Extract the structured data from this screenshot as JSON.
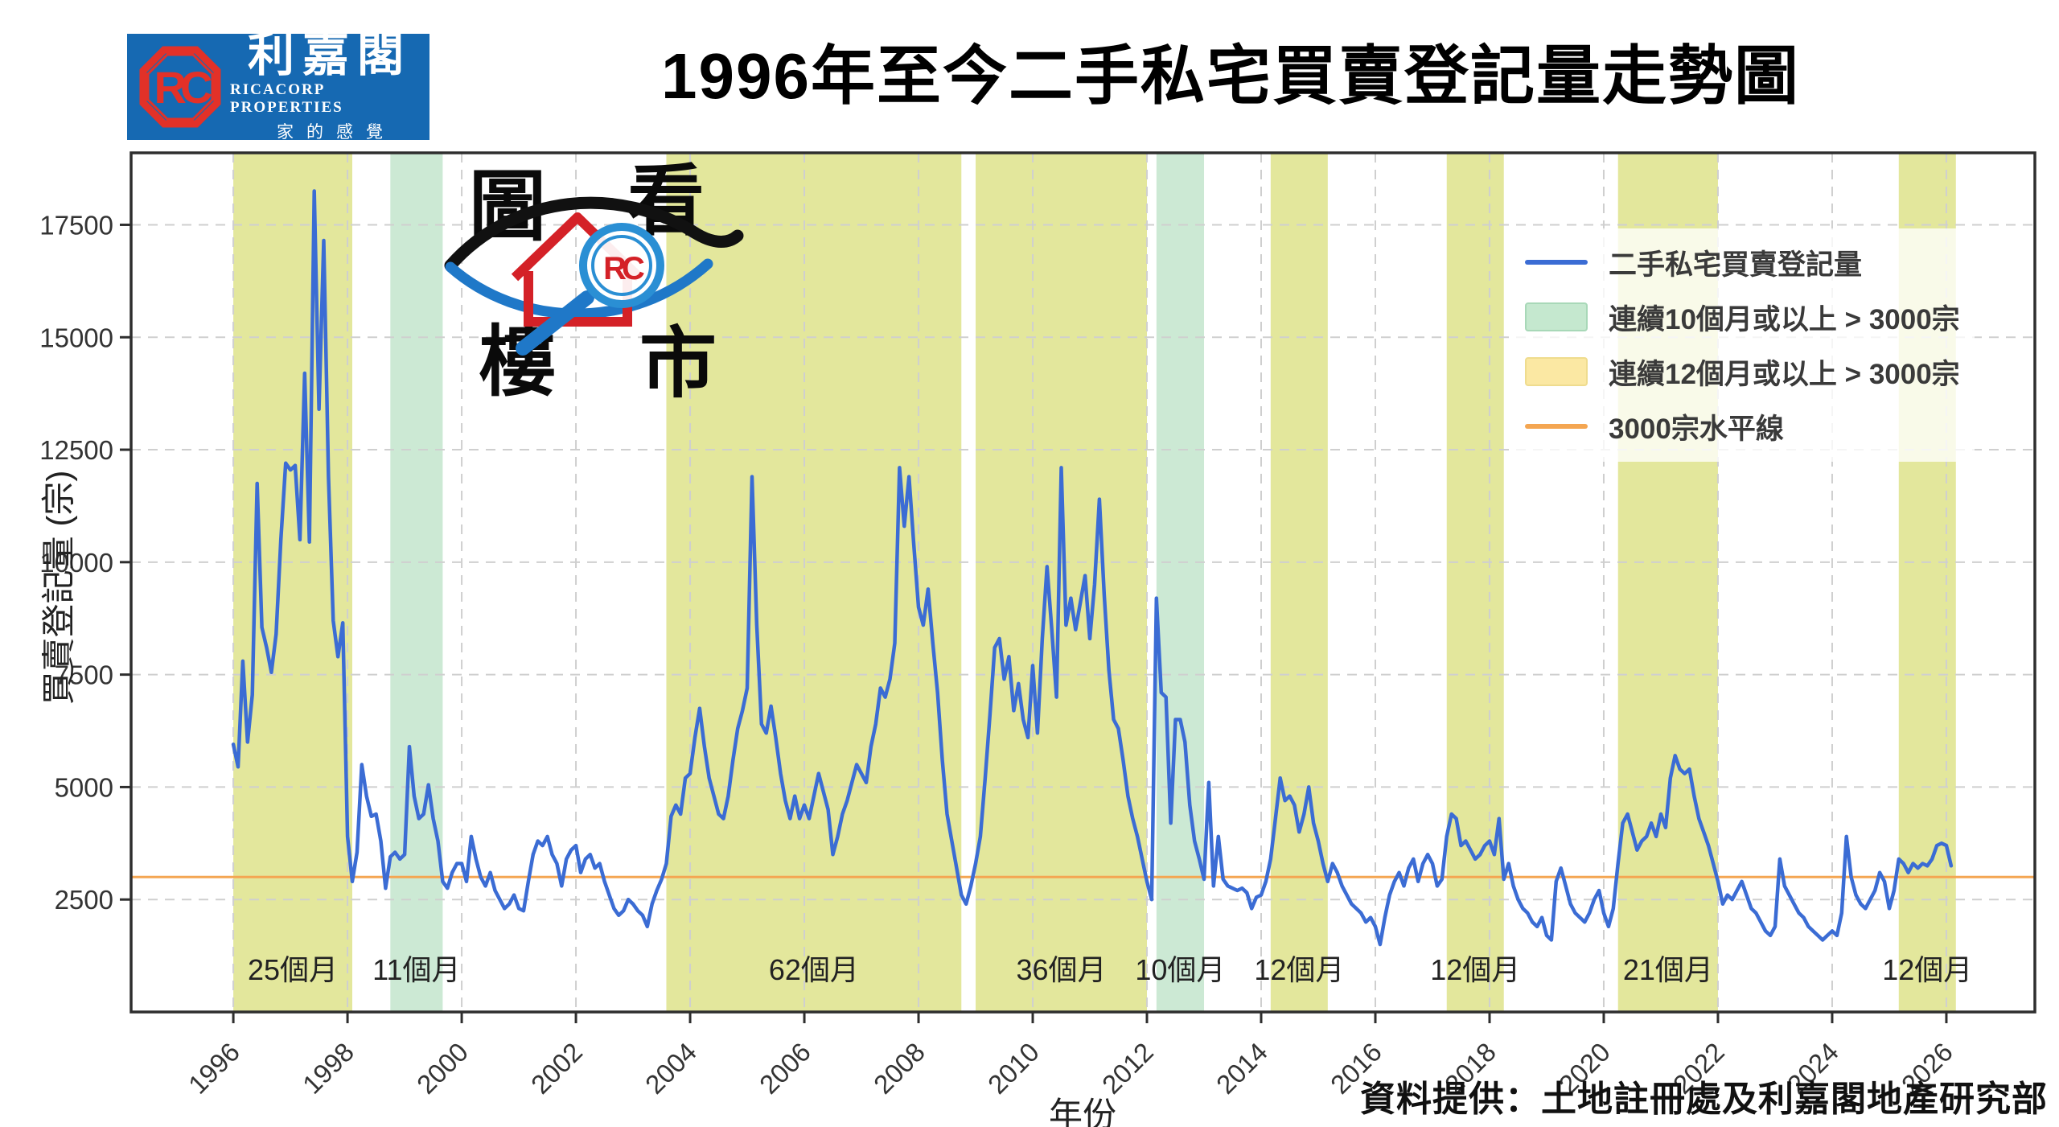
{
  "header": {
    "title": "1996年至今二手私宅買賣登記量走勢圖"
  },
  "logo": {
    "name_cn": "利嘉閣",
    "name_en": "RICACORP PROPERTIES",
    "tagline": "家的感覺",
    "emblem_text": "RC",
    "bg_color": "#1669b2",
    "emblem_color": "#e23128"
  },
  "watermark": {
    "chars": [
      "圖",
      "看",
      "樓",
      "市"
    ]
  },
  "footer": {
    "credit": "資料提供：土地註冊處及利嘉閣地產研究部"
  },
  "colors": {
    "line": "#3b6cd4",
    "hline": "#f4a652",
    "band_green": "#cce9d4",
    "band_yellow": "#e3e79c",
    "legend_green": "#c5e8cf",
    "legend_green_border": "#a8d8b8",
    "legend_yellow": "#fbe8a3",
    "legend_yellow_border": "#efdc8e",
    "grid": "#cfcfcf",
    "spine": "#2e2e2e",
    "tick_text": "#333333",
    "band_label_text": "#222222"
  },
  "chart_data": {
    "type": "line",
    "title": "1996年至今二手私宅買賣登記量走勢圖",
    "xlabel": "年份",
    "ylabel": "買賣登記量 (宗)",
    "interval": "monthly",
    "x_start": "1996-01",
    "x_end": "2026-02",
    "xticks": [
      1996,
      1998,
      2000,
      2002,
      2004,
      2006,
      2008,
      2010,
      2012,
      2014,
      2016,
      2018,
      2020,
      2022,
      2024,
      2026
    ],
    "yticks": [
      2500,
      5000,
      7500,
      10000,
      12500,
      15000,
      17500
    ],
    "ylim": [
      0,
      19100
    ],
    "xlim": [
      1994.21,
      2027.55
    ],
    "grid": "both-dashed",
    "legend_position": "upper right",
    "hline": {
      "value": 3000,
      "label": "3000宗水平線"
    },
    "legend": [
      {
        "swatch": "line",
        "color_key": "line",
        "border_key": "line",
        "label": "二手私宅買賣登記量"
      },
      {
        "swatch": "patch",
        "color_key": "legend_green",
        "border_key": "legend_green_border",
        "label": "連續10個月或以上 > 3000宗"
      },
      {
        "swatch": "patch",
        "color_key": "legend_yellow",
        "border_key": "legend_yellow_border",
        "label": "連續12個月或以上 > 3000宗"
      },
      {
        "swatch": "line",
        "color_key": "hline",
        "border_key": "hline",
        "label": "3000宗水平線"
      }
    ],
    "bands": [
      {
        "start": "1996-01",
        "months": 25,
        "label": "25個月",
        "kind": "yellow"
      },
      {
        "start": "1998-10",
        "months": 11,
        "label": "11個月",
        "kind": "green"
      },
      {
        "start": "2003-08",
        "months": 62,
        "label": "62個月",
        "kind": "yellow"
      },
      {
        "start": "2009-01",
        "months": 36,
        "label": "36個月",
        "kind": "yellow"
      },
      {
        "start": "2012-03",
        "months": 10,
        "label": "10個月",
        "kind": "green"
      },
      {
        "start": "2014-03",
        "months": 12,
        "label": "12個月",
        "kind": "yellow"
      },
      {
        "start": "2017-04",
        "months": 12,
        "label": "12個月",
        "kind": "yellow"
      },
      {
        "start": "2020-04",
        "months": 21,
        "label": "21個月",
        "kind": "yellow"
      },
      {
        "start": "2025-03",
        "months": 12,
        "label": "12個月",
        "kind": "yellow"
      }
    ],
    "values": [
      5950,
      5450,
      7800,
      6000,
      7050,
      11750,
      8550,
      8100,
      7550,
      8400,
      10500,
      12200,
      12050,
      12150,
      10500,
      14200,
      10450,
      18250,
      13400,
      17150,
      11900,
      8700,
      7900,
      8650,
      3900,
      2900,
      3550,
      5500,
      4800,
      4350,
      4400,
      3800,
      2750,
      3450,
      3550,
      3400,
      3500,
      5900,
      4800,
      4300,
      4400,
      5050,
      4300,
      3800,
      2900,
      2750,
      3100,
      3300,
      3300,
      2900,
      3900,
      3400,
      3000,
      2800,
      3100,
      2700,
      2500,
      2300,
      2400,
      2600,
      2300,
      2250,
      2900,
      3500,
      3800,
      3700,
      3900,
      3500,
      3300,
      2800,
      3400,
      3600,
      3700,
      3100,
      3400,
      3500,
      3200,
      3300,
      2900,
      2600,
      2300,
      2150,
      2250,
      2500,
      2400,
      2250,
      2150,
      1900,
      2400,
      2700,
      2950,
      3300,
      4350,
      4600,
      4400,
      5200,
      5300,
      6100,
      6750,
      5900,
      5200,
      4800,
      4400,
      4300,
      4800,
      5600,
      6300,
      6700,
      7200,
      11900,
      8600,
      6400,
      6200,
      6800,
      6100,
      5300,
      4700,
      4300,
      4800,
      4300,
      4600,
      4300,
      4800,
      5300,
      4900,
      4500,
      3500,
      3900,
      4400,
      4700,
      5100,
      5500,
      5300,
      5100,
      5900,
      6400,
      7200,
      7000,
      7400,
      8200,
      12100,
      10800,
      11900,
      10400,
      9000,
      8600,
      9400,
      8200,
      7100,
      5600,
      4400,
      3800,
      3200,
      2600,
      2400,
      2800,
      3300,
      3900,
      5200,
      6600,
      8100,
      8300,
      7400,
      7900,
      6700,
      7300,
      6500,
      6100,
      7700,
      6200,
      8300,
      9900,
      8500,
      7000,
      12100,
      8600,
      9200,
      8500,
      9100,
      9700,
      8300,
      9500,
      11400,
      9300,
      7600,
      6500,
      6300,
      5600,
      4800,
      4300,
      3900,
      3400,
      2900,
      2500,
      9200,
      7100,
      7000,
      4200,
      6500,
      6500,
      6000,
      4600,
      3800,
      3400,
      2950,
      5100,
      2800,
      3900,
      2950,
      2800,
      2750,
      2700,
      2750,
      2650,
      2300,
      2550,
      2600,
      2900,
      3400,
      4300,
      5200,
      4700,
      4800,
      4600,
      4000,
      4400,
      5000,
      4200,
      3800,
      3300,
      2900,
      3300,
      3100,
      2800,
      2600,
      2400,
      2300,
      2200,
      2000,
      2100,
      1900,
      1500,
      2100,
      2600,
      2900,
      3100,
      2800,
      3200,
      3400,
      2900,
      3300,
      3500,
      3300,
      2800,
      2950,
      3900,
      4400,
      4300,
      3700,
      3800,
      3600,
      3400,
      3500,
      3700,
      3800,
      3500,
      4300,
      2950,
      3300,
      2800,
      2500,
      2300,
      2200,
      2000,
      1900,
      2100,
      1700,
      1600,
      2900,
      3200,
      2800,
      2400,
      2200,
      2100,
      2000,
      2200,
      2500,
      2700,
      2200,
      1900,
      2300,
      3300,
      4200,
      4400,
      4000,
      3600,
      3800,
      3900,
      4200,
      3900,
      4400,
      4100,
      5200,
      5700,
      5400,
      5300,
      5400,
      4800,
      4300,
      4000,
      3700,
      3300,
      2900,
      2400,
      2600,
      2500,
      2700,
      2900,
      2600,
      2300,
      2200,
      2000,
      1800,
      1700,
      1900,
      3400,
      2800,
      2600,
      2400,
      2200,
      2100,
      1900,
      1800,
      1700,
      1600,
      1700,
      1800,
      1700,
      2200,
      3900,
      3000,
      2600,
      2400,
      2300,
      2500,
      2700,
      3100,
      2900,
      2300,
      2700,
      3400,
      3300,
      3100,
      3300,
      3200,
      3300,
      3250,
      3400,
      3700,
      3750,
      3700,
      3250
    ]
  }
}
